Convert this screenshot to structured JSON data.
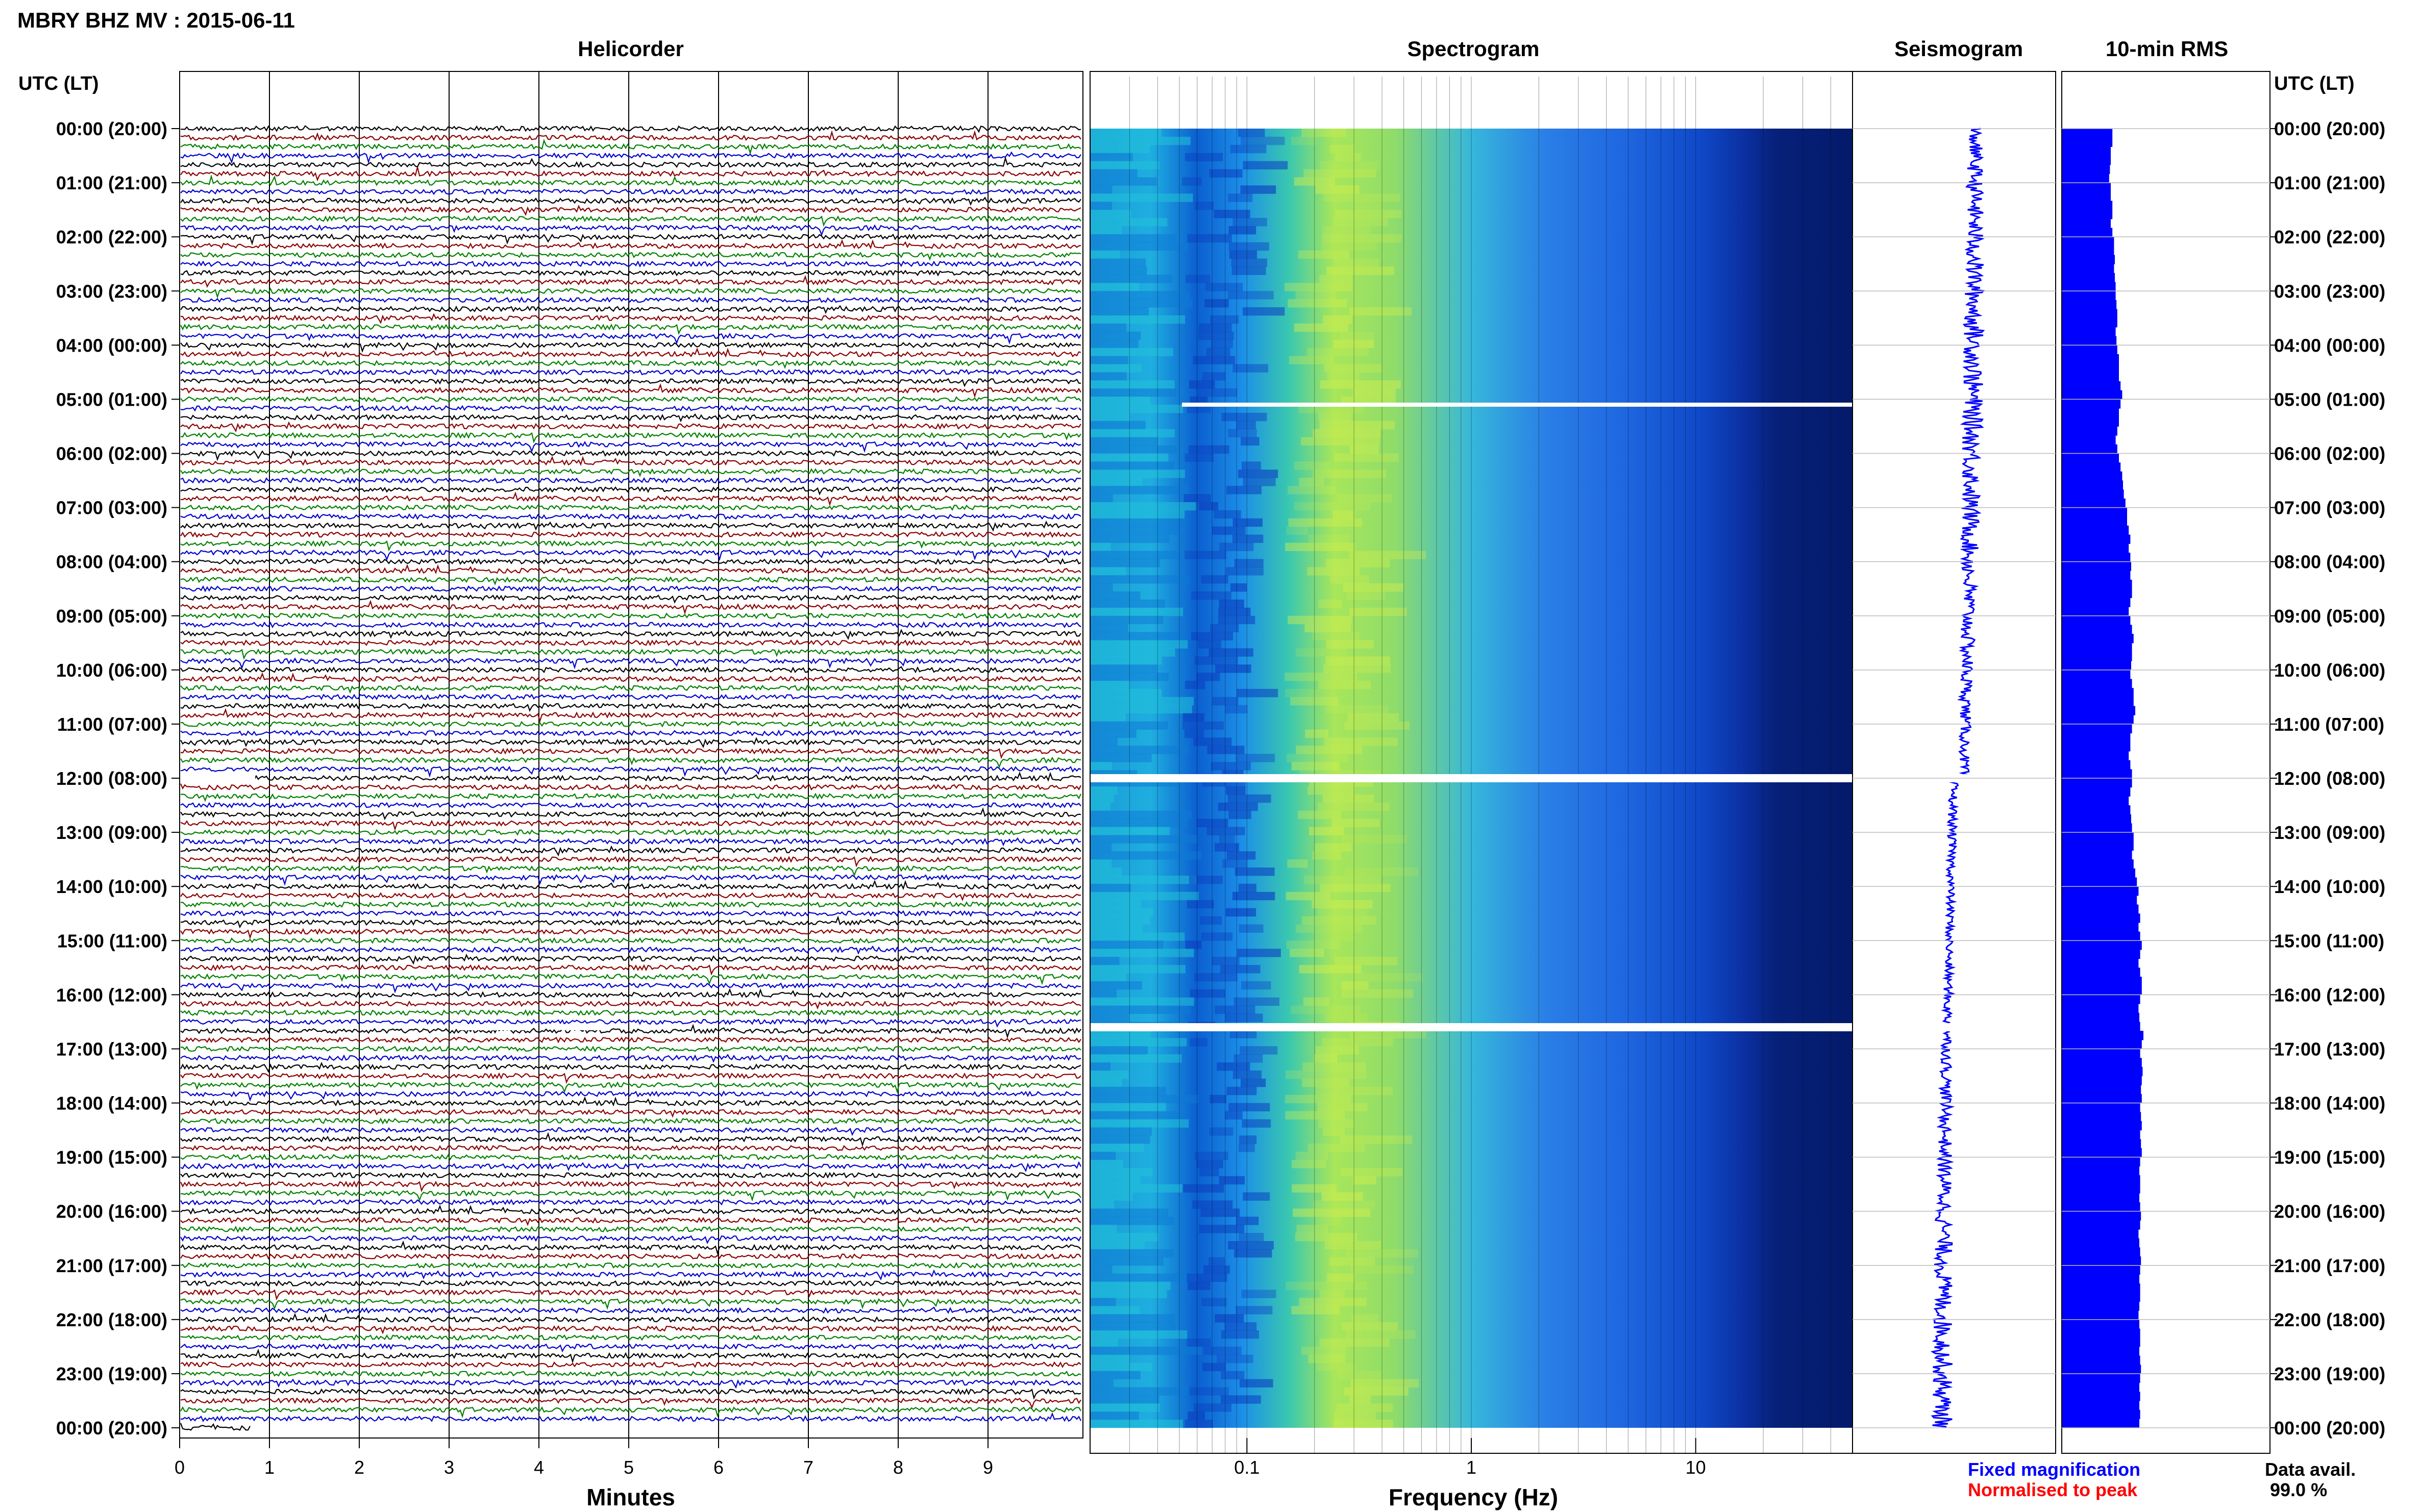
{
  "header": {
    "title": "MBRY BHZ MV : 2015-06-11",
    "utc_label": "UTC (LT)"
  },
  "panels": {
    "helicorder": "Helicorder",
    "spectrogram": "Spectrogram",
    "seismogram": "Seismogram",
    "rms": "10-min RMS"
  },
  "footer": {
    "legend_fixed": "Fixed magnification",
    "legend_norm": "Normalised to peak",
    "data_avail_label": "Data avail.",
    "data_avail_value": "99.0 %"
  },
  "colors": {
    "legend_fixed": "#0000ff",
    "legend_norm": "#ff0000",
    "bar": "#0000ff",
    "trace_cycle": [
      "#000000",
      "#8b0000",
      "#008000",
      "#0000cd"
    ],
    "gap": "#ffffff"
  },
  "chart_data": {
    "type": "heatmap",
    "time_ticks": [
      "00:00 (20:00)",
      "01:00 (21:00)",
      "02:00 (22:00)",
      "03:00 (23:00)",
      "04:00 (00:00)",
      "05:00 (01:00)",
      "06:00 (02:00)",
      "07:00 (03:00)",
      "08:00 (04:00)",
      "09:00 (05:00)",
      "10:00 (06:00)",
      "11:00 (07:00)",
      "12:00 (08:00)",
      "13:00 (09:00)",
      "14:00 (10:00)",
      "15:00 (11:00)",
      "16:00 (12:00)",
      "17:00 (13:00)",
      "18:00 (14:00)",
      "19:00 (15:00)",
      "20:00 (16:00)",
      "21:00 (17:00)",
      "22:00 (18:00)",
      "23:00 (19:00)",
      "00:00 (20:00)"
    ],
    "helicorder": {
      "xlabel": "Minutes",
      "xlim": [
        0,
        10
      ],
      "xticks": [
        "0",
        "1",
        "2",
        "3",
        "4",
        "5",
        "6",
        "7",
        "8",
        "9"
      ],
      "rows_per_hour": 6,
      "color_cycle": [
        "black",
        "darkred",
        "green",
        "blue"
      ]
    },
    "spectrogram": {
      "xlabel": "Frequency (Hz)",
      "xscale": "log",
      "xlim": [
        0.02,
        50
      ],
      "xticks": [
        "0.1",
        "1",
        "10"
      ],
      "gaps_utc_hours": [
        5.1,
        12.0,
        16.6
      ]
    },
    "seismogram": {
      "type": "line",
      "description_hours": [
        0,
        24
      ]
    },
    "rms_10min": {
      "type": "bar",
      "values_relative": [
        0.62,
        0.62,
        0.6,
        0.6,
        0.59,
        0.58,
        0.6,
        0.6,
        0.62,
        0.62,
        0.6,
        0.62,
        0.64,
        0.64,
        0.65,
        0.64,
        0.65,
        0.66,
        0.66,
        0.67,
        0.68,
        0.68,
        0.66,
        0.67,
        0.68,
        0.7,
        0.7,
        0.7,
        0.72,
        0.74,
        0.72,
        0.7,
        0.7,
        0.68,
        0.66,
        0.68,
        0.7,
        0.72,
        0.74,
        0.75,
        0.76,
        0.78,
        0.8,
        0.8,
        0.82,
        0.84,
        0.82,
        0.84,
        0.85,
        0.84,
        0.86,
        0.86,
        0.84,
        0.82,
        0.84,
        0.86,
        0.88,
        0.86,
        0.86,
        0.85,
        0.84,
        0.86,
        0.88,
        0.88,
        0.9,
        0.88,
        0.86,
        0.84,
        0.84,
        0.82,
        0.84,
        0.86,
        0.86,
        0.84,
        0.82,
        0.84,
        0.85,
        0.86,
        0.88,
        0.88,
        0.86,
        0.88,
        0.9,
        0.92,
        0.94,
        0.92,
        0.94,
        0.96,
        0.94,
        0.96,
        0.98,
        0.96,
        0.94,
        0.96,
        0.98,
        0.98,
        0.96,
        0.94,
        0.95,
        0.96,
        1.0,
        0.98,
        0.96,
        0.98,
        0.99,
        0.98,
        0.97,
        0.98,
        0.96,
        0.97,
        0.98,
        0.96,
        0.97,
        0.98,
        0.96,
        0.95,
        0.96,
        0.96,
        0.95,
        0.96,
        0.97,
        0.96,
        0.94,
        0.95,
        0.96,
        0.97,
        0.96,
        0.95,
        0.96,
        0.96,
        0.95,
        0.94,
        0.95,
        0.96,
        0.96,
        0.95,
        0.96,
        0.97,
        0.96,
        0.95,
        0.96,
        0.95,
        0.96,
        0.95
      ]
    }
  }
}
